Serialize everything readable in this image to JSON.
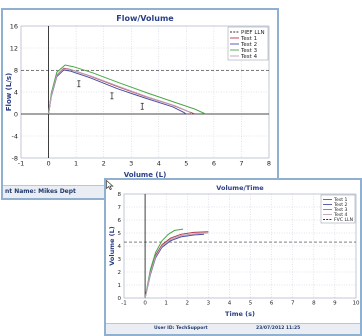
{
  "windows": [
    {
      "status_text": "nt Name: Mikes Dept"
    },
    {
      "status_user": "User ID: TechSupport",
      "status_date": "23/07/2012 11:25"
    }
  ],
  "chart_data": [
    {
      "type": "line",
      "title": "Flow/Volume",
      "xlabel": "Volume (L)",
      "ylabel": "Flow (L/s)",
      "xlim": [
        -1,
        8
      ],
      "ylim": [
        -8,
        16
      ],
      "xticks": [
        "-1",
        "0",
        "1",
        "2",
        "3",
        "4",
        "5",
        "6",
        "7",
        "8"
      ],
      "yticks": [
        "16",
        "12",
        "8",
        "4",
        "0",
        "-4",
        "-8"
      ],
      "legend": [
        "PIEF LLN",
        "Test 1",
        "Test 2",
        "Test 3",
        "Test 4"
      ],
      "legend_position": "top-right",
      "grid": true,
      "pief_lln": 7.9,
      "ref_points": [
        {
          "x": 1.1,
          "y": 5.5
        },
        {
          "x": 2.3,
          "y": 3.3
        },
        {
          "x": 3.4,
          "y": 1.4
        }
      ],
      "series": [
        {
          "name": "Test 1",
          "color": "#b03a4a",
          "points": [
            [
              0,
              0
            ],
            [
              0.1,
              3.6
            ],
            [
              0.3,
              7.1
            ],
            [
              0.55,
              8.3
            ],
            [
              0.8,
              8.1
            ],
            [
              1.5,
              6.9
            ],
            [
              2.5,
              5.0
            ],
            [
              3.5,
              3.2
            ],
            [
              4.5,
              1.6
            ],
            [
              5.1,
              0.4
            ],
            [
              5.3,
              0
            ]
          ]
        },
        {
          "name": "Test 2",
          "color": "#4a4fa0",
          "points": [
            [
              0,
              0
            ],
            [
              0.1,
              3.2
            ],
            [
              0.3,
              6.8
            ],
            [
              0.55,
              8.0
            ],
            [
              0.8,
              7.8
            ],
            [
              1.5,
              6.6
            ],
            [
              2.5,
              4.6
            ],
            [
              3.5,
              2.9
            ],
            [
              4.5,
              1.3
            ],
            [
              4.9,
              0.3
            ],
            [
              5.0,
              0
            ]
          ]
        },
        {
          "name": "Test 3",
          "color": "#48a848",
          "points": [
            [
              0,
              0
            ],
            [
              0.1,
              3.8
            ],
            [
              0.3,
              7.6
            ],
            [
              0.6,
              8.9
            ],
            [
              0.9,
              8.6
            ],
            [
              1.6,
              7.5
            ],
            [
              2.6,
              5.6
            ],
            [
              3.6,
              3.8
            ],
            [
              4.6,
              2.1
            ],
            [
              5.3,
              0.9
            ],
            [
              5.7,
              0
            ]
          ]
        },
        {
          "name": "Test 4",
          "color": "#c0a0b8",
          "points": [
            [
              0,
              0
            ],
            [
              0.1,
              3.4
            ],
            [
              0.3,
              7.0
            ],
            [
              0.55,
              8.2
            ],
            [
              0.85,
              8.0
            ],
            [
              1.6,
              6.8
            ],
            [
              2.6,
              4.9
            ],
            [
              3.6,
              3.1
            ],
            [
              4.6,
              1.5
            ],
            [
              5.1,
              0.4
            ],
            [
              5.2,
              0
            ]
          ]
        }
      ]
    },
    {
      "type": "line",
      "title": "Volume/Time",
      "xlabel": "Time (s)",
      "ylabel": "Volume (L)",
      "xlim": [
        -1,
        10
      ],
      "ylim": [
        0,
        8
      ],
      "xticks": [
        "-1",
        "0",
        "1",
        "2",
        "3",
        "4",
        "5",
        "6",
        "7",
        "8",
        "9",
        "10"
      ],
      "yticks": [
        "8",
        "7",
        "6",
        "5",
        "4",
        "3",
        "2",
        "1",
        "0"
      ],
      "legend": [
        "Test 1",
        "Test 2",
        "Test 3",
        "Test 4",
        "FVC LLN"
      ],
      "legend_position": "top-right",
      "grid": true,
      "fvc_lln": 4.3,
      "series": [
        {
          "name": "Test 1",
          "color": "#b03a4a",
          "points": [
            [
              0,
              0
            ],
            [
              0.25,
              2.0
            ],
            [
              0.5,
              3.3
            ],
            [
              0.8,
              4.1
            ],
            [
              1.2,
              4.6
            ],
            [
              1.7,
              4.9
            ],
            [
              2.3,
              5.05
            ],
            [
              3.0,
              5.1
            ]
          ]
        },
        {
          "name": "Test 2",
          "color": "#4a4fa0",
          "points": [
            [
              0,
              0
            ],
            [
              0.25,
              1.8
            ],
            [
              0.5,
              3.1
            ],
            [
              0.8,
              3.9
            ],
            [
              1.2,
              4.4
            ],
            [
              1.7,
              4.7
            ],
            [
              2.3,
              4.85
            ],
            [
              2.8,
              4.9
            ]
          ]
        },
        {
          "name": "Test 3",
          "color": "#48a848",
          "points": [
            [
              0,
              0
            ],
            [
              0.25,
              2.2
            ],
            [
              0.5,
              3.5
            ],
            [
              0.8,
              4.4
            ],
            [
              1.1,
              4.9
            ],
            [
              1.4,
              5.2
            ],
            [
              1.8,
              5.3
            ]
          ]
        },
        {
          "name": "Test 4",
          "color": "#c0a0b8",
          "points": [
            [
              0,
              0
            ],
            [
              0.25,
              1.9
            ],
            [
              0.5,
              3.2
            ],
            [
              0.8,
              4.0
            ],
            [
              1.2,
              4.5
            ],
            [
              1.7,
              4.8
            ],
            [
              2.4,
              4.95
            ],
            [
              3.0,
              5.0
            ]
          ]
        }
      ]
    }
  ]
}
